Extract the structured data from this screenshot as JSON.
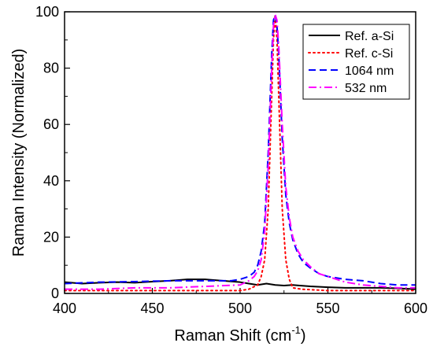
{
  "chart_data": {
    "type": "line",
    "xlabel": "Raman Shift (cm",
    "xlabel_sup": "-1",
    "xlabel_end": ")",
    "ylabel": "Raman Intensity (Normalized)",
    "xlim": [
      400,
      600
    ],
    "ylim": [
      0,
      100
    ],
    "xticks": [
      "400",
      "450",
      "500",
      "550",
      "600"
    ],
    "yticks": [
      "0",
      "20",
      "40",
      "60",
      "80",
      "100"
    ],
    "legend": "top-right",
    "grid": false,
    "series": [
      {
        "name": "Ref. a-Si",
        "color": "#000000",
        "style": "solid",
        "x": [
          400,
          410,
          420,
          430,
          440,
          450,
          460,
          470,
          480,
          490,
          500,
          505,
          510,
          515,
          520,
          525,
          530,
          540,
          550,
          560,
          570,
          580,
          590,
          600
        ],
        "y": [
          4,
          3.5,
          3.8,
          4,
          3.8,
          4.2,
          4.5,
          5,
          5,
          4.5,
          4,
          3.5,
          3,
          3.5,
          3,
          2.8,
          3,
          2.5,
          2.2,
          2,
          2,
          2,
          1.8,
          1.5
        ]
      },
      {
        "name": "Ref. c-Si",
        "color": "#ff0000",
        "style": "dotted",
        "x": [
          400,
          450,
          500,
          505,
          510,
          512,
          514,
          516,
          518,
          519,
          520,
          521,
          522,
          524,
          526,
          528,
          530,
          535,
          550,
          600
        ],
        "y": [
          1,
          1,
          1,
          1.5,
          3,
          6,
          12,
          30,
          70,
          90,
          99,
          90,
          70,
          30,
          12,
          5,
          2,
          1.5,
          1,
          1
        ]
      },
      {
        "name": "1064 nm",
        "color": "#0000ff",
        "style": "dashed",
        "x": [
          400,
          420,
          440,
          460,
          480,
          495,
          500,
          505,
          508,
          510,
          512,
          514,
          516,
          518,
          519,
          520,
          521,
          522,
          524,
          526,
          528,
          530,
          533,
          536,
          540,
          545,
          550,
          560,
          570,
          580,
          590,
          600
        ],
        "y": [
          3.5,
          4,
          4.2,
          4.5,
          4.5,
          4.5,
          5,
          6,
          7.5,
          10,
          15,
          25,
          50,
          85,
          97,
          99,
          95,
          85,
          55,
          35,
          25,
          19,
          14,
          11,
          9,
          7,
          6,
          5,
          4.5,
          3.5,
          3,
          3
        ]
      },
      {
        "name": "532 nm",
        "color": "#ff00ff",
        "style": "dashdot",
        "x": [
          400,
          420,
          440,
          460,
          480,
          500,
          505,
          508,
          510,
          512,
          514,
          516,
          518,
          519,
          520,
          521,
          522,
          524,
          526,
          528,
          530,
          533,
          536,
          540,
          545,
          550,
          560,
          570,
          580,
          590,
          600
        ],
        "y": [
          1.5,
          1.5,
          2,
          2,
          2.5,
          3,
          4.5,
          6,
          8,
          12,
          22,
          45,
          80,
          95,
          99,
          97,
          88,
          60,
          38,
          27,
          20,
          15,
          12,
          9.5,
          7,
          6,
          4,
          3,
          2.5,
          2,
          2
        ]
      }
    ]
  }
}
